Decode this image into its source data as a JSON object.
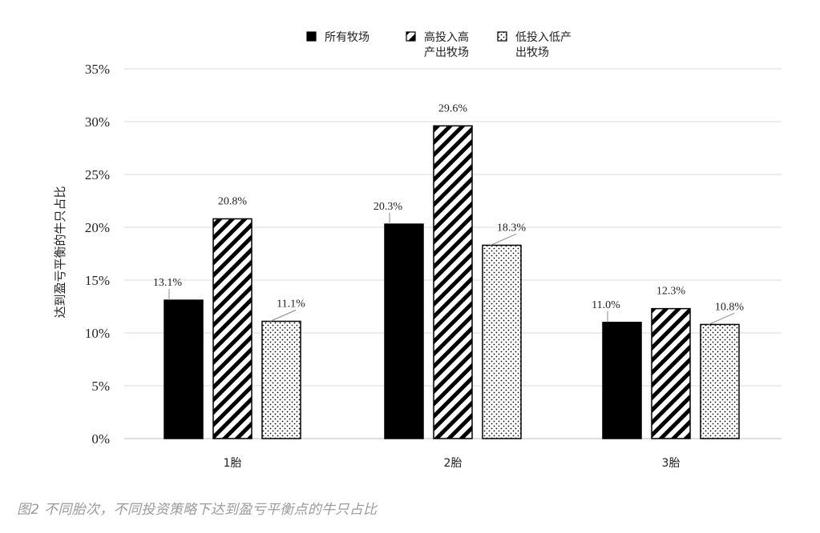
{
  "chart_data": {
    "type": "bar",
    "ylabel": "达到盈亏平衡的牛只占比",
    "xlabel": "",
    "categories": [
      "1胎",
      "2胎",
      "3胎"
    ],
    "ylim": [
      0,
      35
    ],
    "yticks": [
      "0%",
      "5%",
      "10%",
      "15%",
      "20%",
      "25%",
      "30%",
      "35%"
    ],
    "grid": true,
    "legend_position": "top",
    "series": [
      {
        "name": "所有牧场",
        "values": [
          13.1,
          20.3,
          11.0
        ],
        "labels": [
          "13.1%",
          "20.3%",
          "11.0%"
        ],
        "fill": "solid-black"
      },
      {
        "name": "高投入高产出牧场",
        "legend_lines": [
          "高投入高",
          "产出牧场"
        ],
        "values": [
          20.8,
          29.6,
          12.3
        ],
        "labels": [
          "20.8%",
          "29.6%",
          "12.3%"
        ],
        "fill": "diagonal-stripes"
      },
      {
        "name": "低投入低产出牧场",
        "legend_lines": [
          "低投入低产",
          "出牧场"
        ],
        "values": [
          11.1,
          18.3,
          10.8
        ],
        "labels": [
          "11.1%",
          "18.3%",
          "10.8%"
        ],
        "fill": "dots"
      }
    ]
  },
  "caption": "图2 不同胎次，不同投资策略下达到盈亏平衡点的牛只占比",
  "colors": {
    "bar_black": "#000000",
    "grid": "#d9d9d9",
    "caption": "#9a9a9a"
  }
}
